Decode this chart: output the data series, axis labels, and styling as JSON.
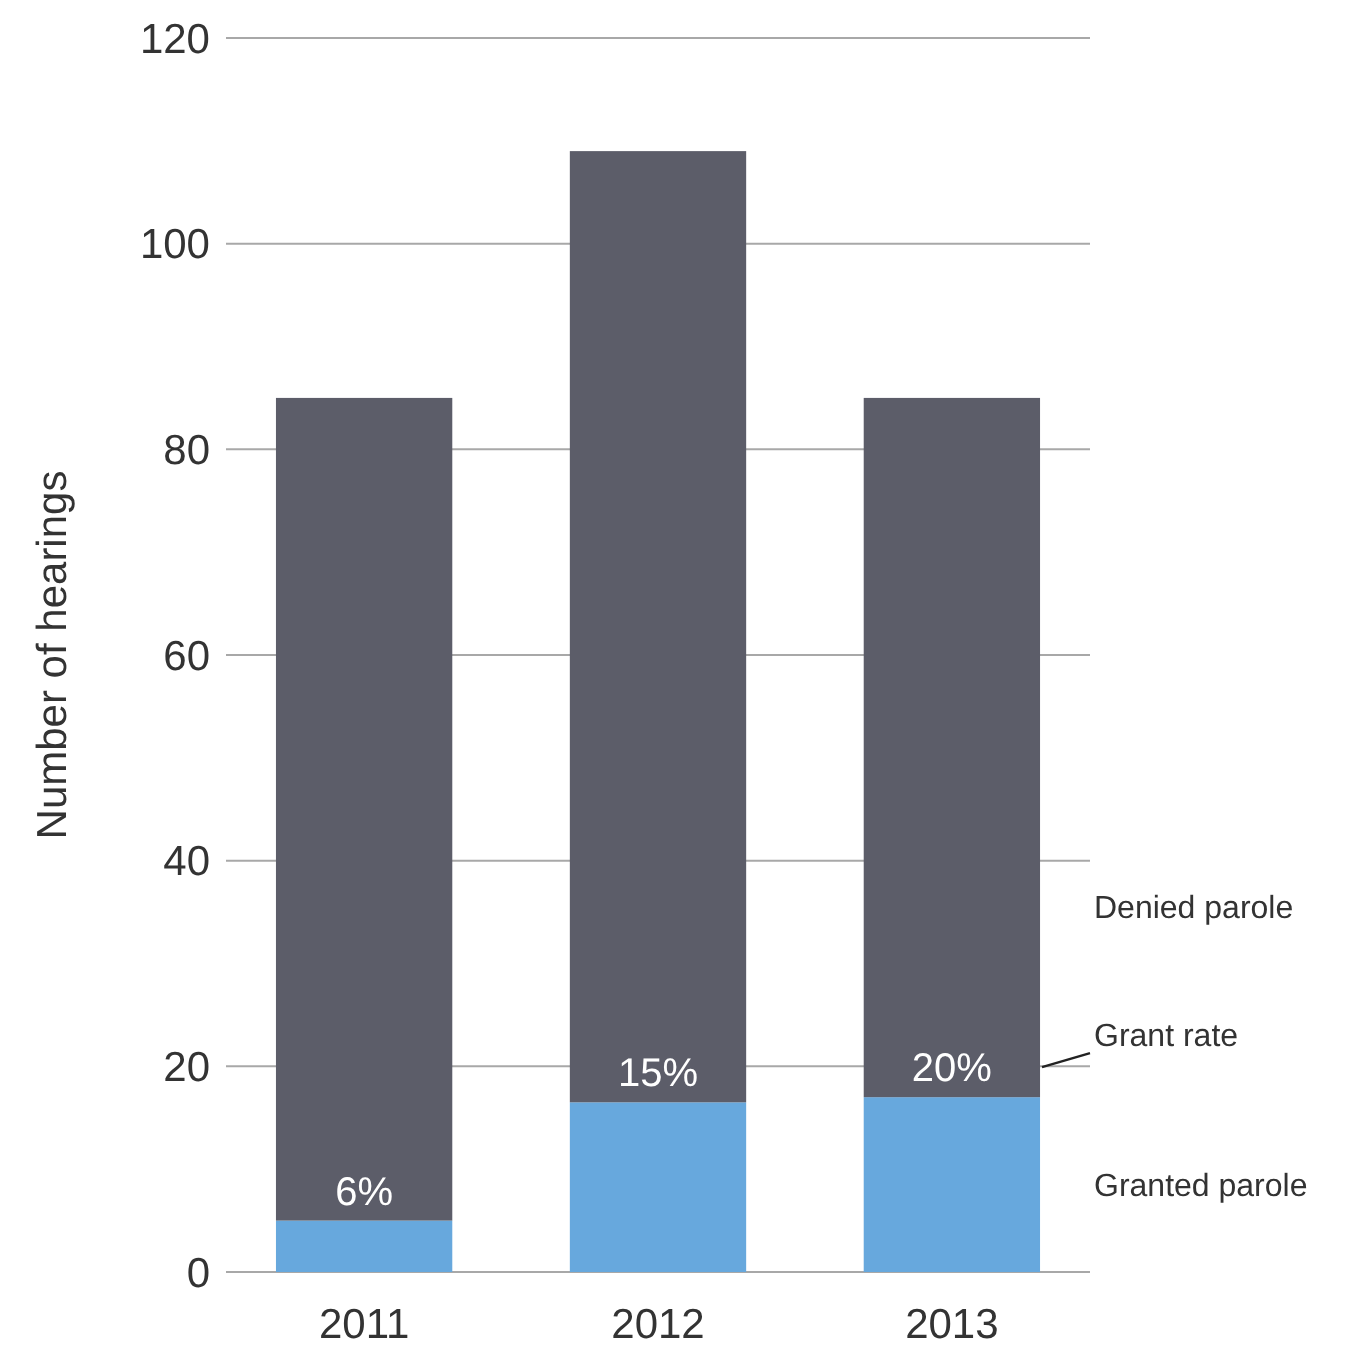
{
  "chart_data": {
    "type": "bar",
    "stacked": true,
    "ylabel": "Number of hearings",
    "categories": [
      "2011",
      "2012",
      "2013"
    ],
    "series": [
      {
        "name": "Granted parole",
        "color": "#67a8dd",
        "values": [
          5,
          16.5,
          17
        ]
      },
      {
        "name": "Denied parole",
        "color": "#5c5d69",
        "values": [
          80,
          92.5,
          68
        ]
      }
    ],
    "ylim": [
      0,
      120
    ],
    "yticks": [
      0,
      20,
      40,
      60,
      80,
      100,
      120
    ],
    "grid": "y",
    "legend": false,
    "annotations": [
      {
        "text": "6%",
        "x": "2011",
        "y": 5
      },
      {
        "text": "15%",
        "x": "2012",
        "y": 16.5
      },
      {
        "text": "20%",
        "x": "2013",
        "y": 17
      },
      "Grant rate"
    ]
  }
}
